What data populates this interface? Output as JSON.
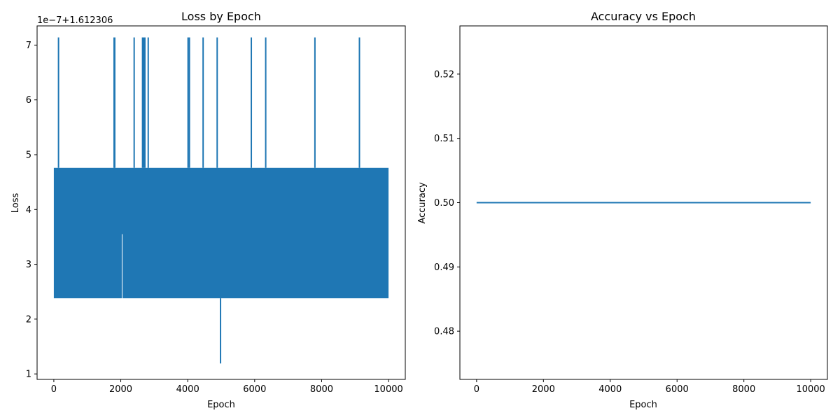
{
  "chart_data": [
    {
      "type": "line",
      "title": "Loss by Epoch",
      "xlabel": "Epoch",
      "ylabel": "Loss",
      "y_offset_label": "1e−7+1.612306",
      "xlim": [
        -500,
        10500
      ],
      "ylim": [
        0.9,
        7.35
      ],
      "xticks": [
        0,
        2000,
        4000,
        6000,
        8000,
        10000
      ],
      "xtick_labels": [
        "0",
        "2000",
        "4000",
        "6000",
        "8000",
        "10000"
      ],
      "yticks": [
        1,
        2,
        3,
        4,
        5,
        6,
        7
      ],
      "ytick_labels": [
        "1",
        "2",
        "3",
        "4",
        "5",
        "6",
        "7"
      ],
      "grid": false,
      "series": [
        {
          "color": "#1f77b4",
          "x_range": [
            0,
            9999
          ],
          "band_low": 2.38,
          "band_high": 4.76,
          "band_gap": {
            "x": 2040,
            "low": 2.05,
            "high": 3.55
          },
          "spikes": [
            {
              "x": 140,
              "y": 7.14
            },
            {
              "x": 1800,
              "y": 7.14
            },
            {
              "x": 1820,
              "y": 7.14
            },
            {
              "x": 2400,
              "y": 7.14
            },
            {
              "x": 2650,
              "y": 7.14
            },
            {
              "x": 2680,
              "y": 7.14
            },
            {
              "x": 2720,
              "y": 7.14
            },
            {
              "x": 2820,
              "y": 7.14
            },
            {
              "x": 4010,
              "y": 7.14
            },
            {
              "x": 4050,
              "y": 7.14
            },
            {
              "x": 4460,
              "y": 7.14
            },
            {
              "x": 4880,
              "y": 7.14
            },
            {
              "x": 5900,
              "y": 7.14
            },
            {
              "x": 6330,
              "y": 7.14
            },
            {
              "x": 7800,
              "y": 7.14
            },
            {
              "x": 9130,
              "y": 7.14
            }
          ],
          "dips": [
            {
              "x": 4980,
              "y": 1.19
            }
          ]
        }
      ]
    },
    {
      "type": "line",
      "title": "Accuracy vs Epoch",
      "xlabel": "Epoch",
      "ylabel": "Accuracy",
      "xlim": [
        -500,
        10500
      ],
      "ylim": [
        0.4725,
        0.5275
      ],
      "xticks": [
        0,
        2000,
        4000,
        6000,
        8000,
        10000
      ],
      "xtick_labels": [
        "0",
        "2000",
        "4000",
        "6000",
        "8000",
        "10000"
      ],
      "yticks": [
        0.48,
        0.49,
        0.5,
        0.51,
        0.52
      ],
      "ytick_labels": [
        "0.48",
        "0.49",
        "0.50",
        "0.51",
        "0.52"
      ],
      "grid": false,
      "series": [
        {
          "color": "#1f77b4",
          "x": [
            0,
            10000
          ],
          "y": [
            0.5,
            0.5
          ]
        }
      ]
    }
  ]
}
